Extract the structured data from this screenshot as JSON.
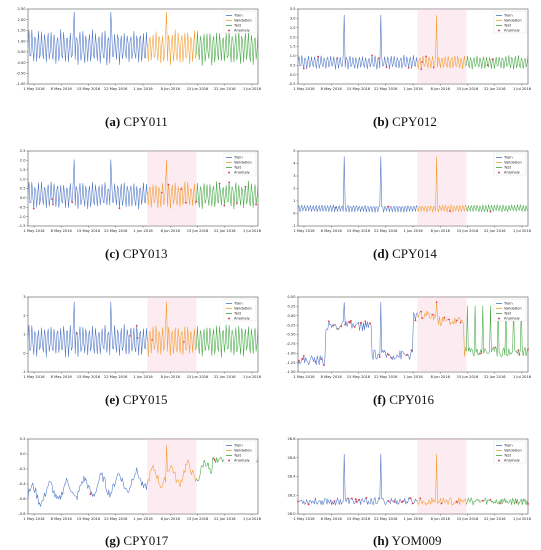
{
  "colors": {
    "train": "#4a72c4",
    "validation": "#f39a2c",
    "test": "#3fa63f",
    "anomaly": "#e0415a",
    "highlight": "#f6c9d6",
    "axis": "#333333"
  },
  "chart_data": [
    {
      "id": "a",
      "caption_letter": "(a)",
      "caption_text": " CPY011",
      "type": "line",
      "profile": "periodic",
      "legend": [
        "Train",
        "Validation",
        "Test",
        "Anomaly"
      ],
      "x_ticks": [
        "1 May 2016",
        "8 May 2016",
        "15 May 2016",
        "22 May 2016",
        "1 Jun 2016",
        "8 Jun 2016",
        "15 Jun 2016",
        "22 Jun 2016",
        "1 Jul 2016"
      ],
      "y_ticks": [
        "2.50",
        "2.00",
        "1.50",
        "1.00",
        "0.50",
        "0.00",
        "-0.50",
        "-1.00"
      ],
      "ylim": [
        -1.25,
        2.75
      ],
      "mid": 0.7,
      "amp": 1.0,
      "spike_value": 2.6,
      "split_frac": [
        0.52,
        0.73
      ],
      "anomaly_count": 0
    },
    {
      "id": "b",
      "caption_letter": "(b)",
      "caption_text": " CPY012",
      "type": "line",
      "profile": "periodic",
      "legend": [
        "Train",
        "Validation",
        "Test",
        "Anomaly"
      ],
      "x_ticks": [
        "1 May 2016",
        "8 May 2016",
        "15 May 2016",
        "22 May 2016",
        "1 Jun 2016",
        "8 Jun 2016",
        "15 Jun 2016",
        "22 Jun 2016",
        "1 Jul 2016"
      ],
      "y_ticks": [
        "3.5",
        "3.0",
        "2.5",
        "2.0",
        "1.5",
        "1.0",
        "0.5",
        "0.0",
        "-0.5"
      ],
      "ylim": [
        -0.75,
        3.75
      ],
      "mid": 0.55,
      "amp": 0.45,
      "spike_value": 3.4,
      "split_frac": [
        0.52,
        0.73
      ],
      "anomaly_count": 14
    },
    {
      "id": "c",
      "caption_letter": "(c)",
      "caption_text": " CPY013",
      "type": "line",
      "profile": "periodic",
      "legend": [
        "Train",
        "Validation",
        "Test",
        "Anomaly"
      ],
      "x_ticks": [
        "1 May 2016",
        "8 May 2016",
        "15 May 2016",
        "22 May 2016",
        "1 Jun 2016",
        "8 Jun 2016",
        "15 Jun 2016",
        "22 Jun 2016",
        "1 Jul 2016"
      ],
      "y_ticks": [
        "2.5",
        "2.0",
        "1.5",
        "1.0",
        "0.5",
        "0.0",
        "-0.5",
        "-1.0",
        "-1.5"
      ],
      "ylim": [
        -1.6,
        2.8
      ],
      "mid": 0.2,
      "amp": 0.85,
      "spike_value": 2.3,
      "split_frac": [
        0.52,
        0.73
      ],
      "anomaly_count": 16
    },
    {
      "id": "d",
      "caption_letter": "(d)",
      "caption_text": " CPY014",
      "type": "line",
      "profile": "spiky",
      "legend": [
        "Train",
        "Validation",
        "Test",
        "Anomaly"
      ],
      "x_ticks": [
        "1 May 2016",
        "8 May 2016",
        "15 May 2016",
        "22 May 2016",
        "1 Jun 2016",
        "8 Jun 2016",
        "15 Jun 2016",
        "22 Jun 2016",
        "1 Jul 2016"
      ],
      "y_ticks": [
        "5",
        "4",
        "3",
        "2",
        "1",
        "0",
        "-1"
      ],
      "ylim": [
        -1.3,
        5.5
      ],
      "mid": 0.3,
      "amp": 0.4,
      "spike_value": 5.0,
      "split_frac": [
        0.52,
        0.73
      ],
      "anomaly_count": 4
    },
    {
      "id": "e",
      "caption_letter": "(e)",
      "caption_text": " CPY015",
      "type": "line",
      "profile": "periodic",
      "legend": [
        "Train",
        "Validation",
        "Test",
        "Anomaly"
      ],
      "x_ticks": [
        "1 May 2016",
        "8 May 2016",
        "15 May 2016",
        "22 May 2016",
        "1 Jun 2016",
        "8 Jun 2016",
        "15 Jun 2016",
        "22 Jun 2016",
        "1 Jul 2016"
      ],
      "y_ticks": [
        "3",
        "2",
        "1",
        "0",
        "-1"
      ],
      "ylim": [
        -1.5,
        3.3
      ],
      "mid": 0.5,
      "amp": 1.1,
      "spike_value": 3.0,
      "split_frac": [
        0.52,
        0.73
      ],
      "anomaly_count": 6
    },
    {
      "id": "f",
      "caption_letter": "(f)",
      "caption_text": " CPY016",
      "type": "line",
      "profile": "level",
      "legend": [
        "Train",
        "Validation",
        "Test",
        "Anomaly"
      ],
      "x_ticks": [
        "1 May 2016",
        "8 May 2016",
        "15 May 2016",
        "22 May 2016",
        "1 Jun 2016",
        "8 Jun 2016",
        "15 Jun 2016",
        "22 Jun 2016",
        "1 Jul 2016"
      ],
      "y_ticks": [
        "0.50",
        "0.25",
        "0.00",
        "-0.25",
        "-0.50",
        "-0.75",
        "-1.00",
        "-1.25",
        "-1.50"
      ],
      "ylim": [
        -1.6,
        0.6
      ],
      "mid": -0.8,
      "amp": 0.3,
      "spike_value": 0.45,
      "split_frac": [
        0.52,
        0.73
      ],
      "anomaly_count": 40
    },
    {
      "id": "g",
      "caption_letter": "(g)",
      "caption_text": " CPY017",
      "type": "line",
      "profile": "drift",
      "legend": [
        "Train",
        "Validation",
        "Test",
        "Anomaly"
      ],
      "x_ticks": [
        "1 May 2016",
        "8 May 2016",
        "15 May 2016",
        "22 May 2016",
        "1 Jun 2016",
        "8 Jun 2016",
        "15 Jun 2016",
        "22 Jun 2016",
        "1 Jul 2016"
      ],
      "y_ticks": [
        "0.2",
        "0.0",
        "-0.2",
        "-0.4",
        "-0.6",
        "-0.8"
      ],
      "ylim": [
        -0.95,
        0.3
      ],
      "mid": -0.45,
      "amp": 0.15,
      "spike_value": 0.2,
      "split_frac": [
        0.52,
        0.73
      ],
      "anomaly_count": 3
    },
    {
      "id": "h",
      "caption_letter": "(h)",
      "caption_text": " YOM009",
      "type": "line",
      "profile": "flat",
      "legend": [
        "Train",
        "Validation",
        "Test",
        "Anomaly"
      ],
      "x_ticks": [
        "1 May 2016",
        "8 May 2016",
        "15 May 2016",
        "22 May 2016",
        "1 Jun 2016",
        "8 Jun 2016",
        "15 Jun 2016",
        "22 Jun 2016",
        "1 Jul 2016"
      ],
      "y_ticks": [
        "28.8",
        "28.6",
        "28.4",
        "28.2",
        "28.0"
      ],
      "ylim": [
        27.95,
        28.95
      ],
      "mid": 28.12,
      "amp": 0.05,
      "spike_value": 28.75,
      "split_frac": [
        0.52,
        0.73
      ],
      "anomaly_count": 30
    }
  ]
}
